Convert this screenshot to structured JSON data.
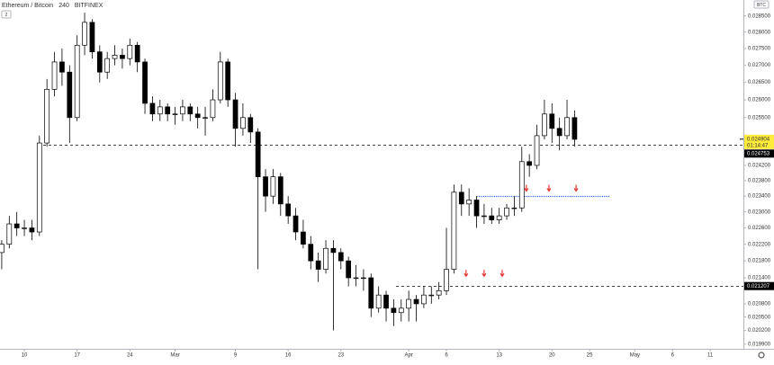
{
  "chart_data": {
    "type": "candlestick",
    "title": "Ethereum / Bitcoin",
    "interval": "240",
    "exchange": "BITFINEX",
    "badge": "2",
    "currency": "BTC",
    "log_scale": true,
    "grid": false,
    "up_color": "#ffffff",
    "down_color": "#000000",
    "wick_color": "#000000",
    "xlim": [
      6.77,
      105.4
    ],
    "ylim": [
      0.0198,
      0.029
    ],
    "xticks": [
      10,
      17,
      24,
      {
        "value": 30,
        "label": "Mar"
      },
      {
        "value": 38,
        "label": "9"
      },
      {
        "value": 45,
        "label": "16"
      },
      {
        "value": 52,
        "label": "23"
      },
      {
        "value": 61,
        "label": "Apr"
      },
      {
        "value": 66,
        "label": "6"
      },
      {
        "value": 73,
        "label": "13"
      },
      {
        "value": 80,
        "label": "20"
      },
      {
        "value": 85,
        "label": "25"
      },
      {
        "value": 91,
        "label": "May"
      },
      {
        "value": 96,
        "label": "6"
      },
      {
        "value": 101,
        "label": "11"
      }
    ],
    "yticks": [
      {
        "value": 0.0285,
        "label": "0.028500"
      },
      {
        "value": 0.028,
        "label": "0.028000"
      },
      {
        "value": 0.0275,
        "label": "0.027500"
      },
      {
        "value": 0.027,
        "label": "0.027000"
      },
      {
        "value": 0.0265,
        "label": "0.026500"
      },
      {
        "value": 0.026,
        "label": "0.026000"
      },
      {
        "value": 0.0255,
        "label": "0.025500"
      },
      {
        "value": 0.0242,
        "label": "0.024200"
      },
      {
        "value": 0.0238,
        "label": "0.023800"
      },
      {
        "value": 0.0234,
        "label": "0.023400"
      },
      {
        "value": 0.023,
        "label": "0.023000"
      },
      {
        "value": 0.0226,
        "label": "0.022600"
      },
      {
        "value": 0.0222,
        "label": "0.022200"
      },
      {
        "value": 0.0218,
        "label": "0.021800"
      },
      {
        "value": 0.0214,
        "label": "0.021400"
      },
      {
        "value": 0.0208,
        "label": "0.020800"
      },
      {
        "value": 0.0205,
        "label": "0.020500"
      },
      {
        "value": 0.0202,
        "label": "0.020200"
      },
      {
        "value": 0.0199,
        "label": "0.019900"
      }
    ],
    "x": [
      7,
      8,
      9,
      10,
      11,
      12,
      13,
      14,
      15,
      16,
      17,
      18,
      19,
      20,
      21,
      22,
      23,
      24,
      25,
      26,
      27,
      28,
      29,
      30,
      31,
      32,
      33,
      34,
      35,
      36,
      37,
      38,
      39,
      40,
      41,
      42,
      43,
      44,
      45,
      46,
      47,
      48,
      49,
      50,
      51,
      52,
      53,
      54,
      55,
      56,
      57,
      58,
      59,
      60,
      61,
      62,
      63,
      64,
      65,
      66,
      67,
      68,
      69,
      70,
      71,
      72,
      73,
      74,
      75,
      76,
      77,
      78,
      79,
      80,
      81,
      82,
      83
    ],
    "open": [
      0.022,
      0.0222,
      0.0227,
      0.0226,
      0.0226,
      0.0225,
      0.0248,
      0.0263,
      0.0271,
      0.0268,
      0.0255,
      0.0276,
      0.0283,
      0.0274,
      0.0268,
      0.0272,
      0.0273,
      0.0272,
      0.0276,
      0.0271,
      0.0259,
      0.0256,
      0.0258,
      0.0256,
      0.0256,
      0.0258,
      0.0256,
      0.0255,
      0.0255,
      0.026,
      0.0271,
      0.026,
      0.0252,
      0.0255,
      0.0251,
      0.0239,
      0.0234,
      0.0239,
      0.0232,
      0.0229,
      0.0225,
      0.0222,
      0.0218,
      0.0216,
      0.0221,
      0.022,
      0.0218,
      0.0214,
      0.0214,
      0.0214,
      0.0207,
      0.021,
      0.0207,
      0.0206,
      0.0207,
      0.0209,
      0.0208,
      0.021,
      0.021,
      0.0211,
      0.0216,
      0.0235,
      0.0232,
      0.0233,
      0.0229,
      0.0229,
      0.0228,
      0.0229,
      0.0231,
      0.0231,
      0.0243,
      0.0242,
      0.025,
      0.0256,
      0.0252,
      0.025,
      0.0255
    ],
    "high": [
      0.0223,
      0.0229,
      0.023,
      0.0228,
      0.0228,
      0.025,
      0.0266,
      0.0274,
      0.0275,
      0.027,
      0.0279,
      0.0286,
      0.0284,
      0.0276,
      0.0274,
      0.0276,
      0.0275,
      0.0278,
      0.0277,
      0.0272,
      0.0261,
      0.026,
      0.0259,
      0.0258,
      0.026,
      0.0259,
      0.0258,
      0.0258,
      0.0263,
      0.0274,
      0.0272,
      0.0262,
      0.0259,
      0.0256,
      0.0252,
      0.0241,
      0.0241,
      0.024,
      0.0234,
      0.0231,
      0.0228,
      0.0224,
      0.022,
      0.0223,
      0.0223,
      0.0221,
      0.0219,
      0.0217,
      0.0216,
      0.0215,
      0.0212,
      0.0211,
      0.0209,
      0.0209,
      0.0211,
      0.021,
      0.0212,
      0.0212,
      0.0213,
      0.0226,
      0.0237,
      0.0237,
      0.0236,
      0.0234,
      0.0232,
      0.0231,
      0.0231,
      0.0232,
      0.0234,
      0.0247,
      0.0245,
      0.0253,
      0.026,
      0.0259,
      0.0255,
      0.026,
      0.0257
    ],
    "low": [
      0.0216,
      0.0221,
      0.0224,
      0.0224,
      0.0223,
      0.0224,
      0.0247,
      0.0261,
      0.0264,
      0.0248,
      0.0254,
      0.0273,
      0.0272,
      0.0265,
      0.0266,
      0.027,
      0.0269,
      0.027,
      0.0268,
      0.0256,
      0.0254,
      0.0254,
      0.0254,
      0.0253,
      0.0254,
      0.0254,
      0.0252,
      0.025,
      0.0254,
      0.0259,
      0.0258,
      0.0247,
      0.025,
      0.0248,
      0.0216,
      0.023,
      0.0232,
      0.0229,
      0.0227,
      0.0223,
      0.0221,
      0.0216,
      0.0213,
      0.0215,
      0.0202,
      0.0216,
      0.0212,
      0.0212,
      0.0211,
      0.0205,
      0.0206,
      0.0204,
      0.0203,
      0.0204,
      0.0204,
      0.0204,
      0.0207,
      0.0208,
      0.0209,
      0.021,
      0.0215,
      0.0229,
      0.0229,
      0.0226,
      0.0227,
      0.0227,
      0.0227,
      0.0228,
      0.0229,
      0.023,
      0.0239,
      0.0241,
      0.0249,
      0.0248,
      0.0246,
      0.0249,
      0.0247
    ],
    "close": [
      0.0222,
      0.0227,
      0.0226,
      0.0226,
      0.0225,
      0.0248,
      0.0263,
      0.0271,
      0.0268,
      0.0255,
      0.0276,
      0.0283,
      0.0274,
      0.0268,
      0.0272,
      0.0273,
      0.0272,
      0.0276,
      0.0271,
      0.0259,
      0.0256,
      0.0258,
      0.0256,
      0.0256,
      0.0258,
      0.0256,
      0.0255,
      0.0255,
      0.026,
      0.0271,
      0.026,
      0.0252,
      0.0255,
      0.0251,
      0.0239,
      0.0234,
      0.0239,
      0.0232,
      0.0229,
      0.0225,
      0.0222,
      0.0218,
      0.0216,
      0.0221,
      0.022,
      0.0218,
      0.0214,
      0.0214,
      0.0214,
      0.0207,
      0.021,
      0.0207,
      0.0206,
      0.0207,
      0.0209,
      0.0208,
      0.021,
      0.021,
      0.0211,
      0.0216,
      0.0235,
      0.0232,
      0.0233,
      0.0229,
      0.0229,
      0.0228,
      0.0229,
      0.0231,
      0.0231,
      0.0243,
      0.0242,
      0.025,
      0.0256,
      0.0252,
      0.025,
      0.0255,
      0.0249
    ],
    "last_price": 0.024904,
    "last_price_color": "#ffeb3b",
    "countdown": "01:14:47",
    "hlines": [
      {
        "value": 0.024753,
        "from": 12.5,
        "color": "#000000",
        "style": "dashed",
        "show_label": true
      },
      {
        "value": 0.021207,
        "from": 59.3,
        "color": "#000000",
        "style": "dashed",
        "show_label": true
      },
      {
        "value": 0.0234,
        "from": 70,
        "to": 87.7,
        "color": "#2962ff",
        "style": "dotted",
        "show_label": false
      }
    ],
    "arrows": {
      "color": "#e53935",
      "points": [
        {
          "x": 76.6,
          "y": 0.0236
        },
        {
          "x": 79.6,
          "y": 0.0236
        },
        {
          "x": 83.2,
          "y": 0.0236
        },
        {
          "x": 68.6,
          "y": 0.0215
        },
        {
          "x": 71.0,
          "y": 0.0215
        },
        {
          "x": 73.4,
          "y": 0.0215
        }
      ]
    }
  }
}
